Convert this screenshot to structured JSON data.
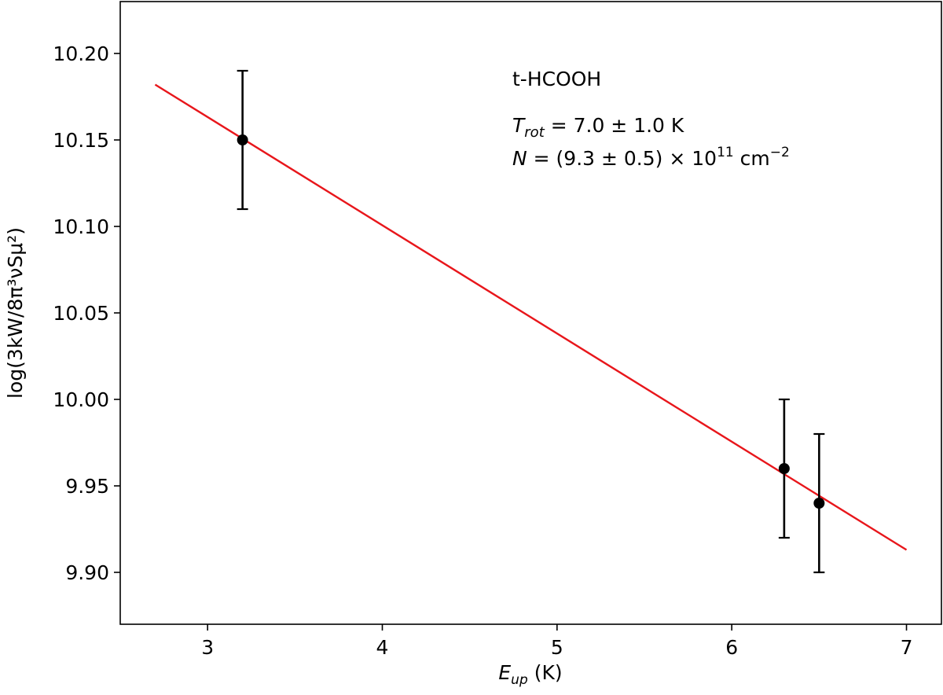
{
  "chart_data": {
    "type": "scatter",
    "title": "",
    "xlabel": {
      "main": "E",
      "sub": "up",
      "unit": " (K)"
    },
    "ylabel": {
      "text": "log(3kW/8π³νSμ²)"
    },
    "xlim": [
      2.5,
      7.2
    ],
    "ylim": [
      9.87,
      10.23
    ],
    "xticks": [
      3,
      4,
      5,
      6,
      7
    ],
    "yticks": [
      9.9,
      9.95,
      10.0,
      10.05,
      10.1,
      10.15,
      10.2
    ],
    "xtick_labels": [
      "3",
      "4",
      "5",
      "6",
      "7"
    ],
    "ytick_labels": [
      "9.90",
      "9.95",
      "10.00",
      "10.05",
      "10.10",
      "10.15",
      "10.20"
    ],
    "grid": false,
    "points": [
      {
        "x": 3.2,
        "y": 10.15,
        "yerr_low": 10.11,
        "yerr_high": 10.19
      },
      {
        "x": 6.3,
        "y": 9.96,
        "yerr_low": 9.92,
        "yerr_high": 10.0
      },
      {
        "x": 6.5,
        "y": 9.94,
        "yerr_low": 9.9,
        "yerr_high": 9.98
      }
    ],
    "fit_line": {
      "x": [
        2.7,
        7.0
      ],
      "y": [
        10.182,
        9.913
      ],
      "color": "#e8161b"
    },
    "point_color": "#000000",
    "annotations": {
      "species": "t-HCOOH",
      "trot": {
        "symbol": "T",
        "sub": "rot",
        "value": " = 7.0 ± 1.0 K"
      },
      "ncol": {
        "symbol": "N",
        "value": " = (9.3 ± 0.5) × 10",
        "exp": "11",
        "unit": " cm",
        "unit_exp": "−2"
      }
    }
  }
}
